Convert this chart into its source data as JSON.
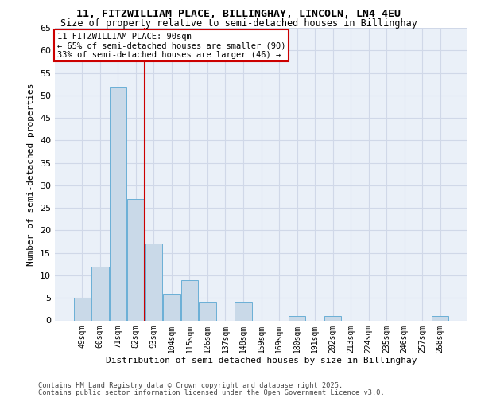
{
  "title1": "11, FITZWILLIAM PLACE, BILLINGHAY, LINCOLN, LN4 4EU",
  "title2": "Size of property relative to semi-detached houses in Billinghay",
  "xlabel": "Distribution of semi-detached houses by size in Billinghay",
  "ylabel": "Number of semi-detached properties",
  "categories": [
    "49sqm",
    "60sqm",
    "71sqm",
    "82sqm",
    "93sqm",
    "104sqm",
    "115sqm",
    "126sqm",
    "137sqm",
    "148sqm",
    "159sqm",
    "169sqm",
    "180sqm",
    "191sqm",
    "202sqm",
    "213sqm",
    "224sqm",
    "235sqm",
    "246sqm",
    "257sqm",
    "268sqm"
  ],
  "values": [
    5,
    12,
    52,
    27,
    17,
    6,
    9,
    4,
    0,
    4,
    0,
    0,
    1,
    0,
    1,
    0,
    0,
    0,
    0,
    0,
    1
  ],
  "bar_color": "#c9d9e8",
  "bar_edge_color": "#6aafd6",
  "annotation_title": "11 FITZWILLIAM PLACE: 90sqm",
  "annotation_line1": "← 65% of semi-detached houses are smaller (90)",
  "annotation_line2": "33% of semi-detached houses are larger (46) →",
  "annotation_box_color": "#ffffff",
  "annotation_box_edge_color": "#cc0000",
  "vline_color": "#cc0000",
  "grid_color": "#d0d8e8",
  "bg_color": "#eaf0f8",
  "footer1": "Contains HM Land Registry data © Crown copyright and database right 2025.",
  "footer2": "Contains public sector information licensed under the Open Government Licence v3.0.",
  "ylim": [
    0,
    65
  ],
  "yticks": [
    0,
    5,
    10,
    15,
    20,
    25,
    30,
    35,
    40,
    45,
    50,
    55,
    60,
    65
  ],
  "vline_x": 3.5
}
